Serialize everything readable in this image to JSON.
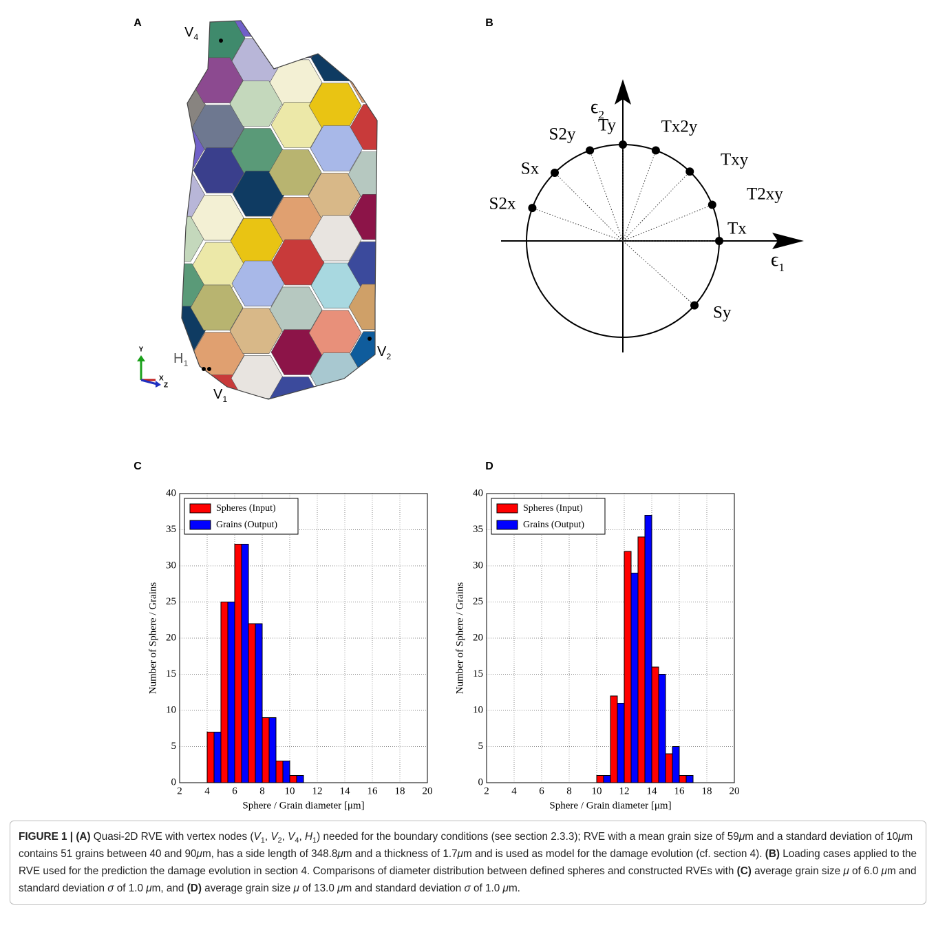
{
  "panels": [
    "A",
    "B",
    "C",
    "D"
  ],
  "panel_a": {
    "vertex_labels": [
      {
        "main": "V",
        "sub": "4"
      },
      {
        "main": "H",
        "sub": "1"
      },
      {
        "main": "V",
        "sub": "1"
      },
      {
        "main": "V",
        "sub": "2"
      }
    ],
    "axis_labels": [
      "Y",
      "X",
      "Z"
    ]
  },
  "panel_b": {
    "axis_labels": [
      {
        "main": "ϵ",
        "sub": "1"
      },
      {
        "main": "ϵ",
        "sub": "2"
      }
    ],
    "points": [
      "Tx",
      "T2xy",
      "Txy",
      "Tx2y",
      "Ty",
      "S2y",
      "Sx",
      "S2x",
      "Sy"
    ]
  },
  "chart_data": [
    {
      "type": "histogram",
      "bins": [
        4,
        5,
        6,
        7,
        8,
        9,
        10,
        11
      ],
      "series": [
        {
          "name": "Spheres (Input)",
          "color": "#ff0000",
          "values": [
            7,
            25,
            33,
            22,
            9,
            3,
            1
          ]
        },
        {
          "name": "Grains (Output)",
          "color": "#0000ff",
          "values": [
            7,
            25,
            33,
            22,
            9,
            3,
            1
          ]
        }
      ],
      "xlabel": "Sphere / Grain diameter [μm]",
      "ylabel": "Number of Sphere / Grains",
      "xlim": [
        2,
        20
      ],
      "ylim": [
        0,
        40
      ],
      "xticks": [
        2,
        4,
        6,
        8,
        10,
        12,
        14,
        16,
        18,
        20
      ],
      "yticks": [
        0,
        5,
        10,
        15,
        20,
        25,
        30,
        35,
        40
      ],
      "grid": true,
      "legend": "upper left"
    },
    {
      "type": "histogram",
      "bins": [
        10,
        11,
        12,
        13,
        14,
        15,
        16,
        17
      ],
      "series": [
        {
          "name": "Spheres (Input)",
          "color": "#ff0000",
          "values": [
            1,
            12,
            32,
            34,
            16,
            4,
            1
          ]
        },
        {
          "name": "Grains (Output)",
          "color": "#0000ff",
          "values": [
            1,
            11,
            29,
            37,
            15,
            5,
            1
          ]
        }
      ],
      "xlabel": "Sphere / Grain diameter [μm]",
      "ylabel": "Number of Sphere / Grains",
      "xlim": [
        2,
        20
      ],
      "ylim": [
        0,
        40
      ],
      "xticks": [
        2,
        4,
        6,
        8,
        10,
        12,
        14,
        16,
        18,
        20
      ],
      "yticks": [
        0,
        5,
        10,
        15,
        20,
        25,
        30,
        35,
        40
      ],
      "grid": true,
      "legend": "upper left"
    }
  ],
  "caption": [
    {
      "text": "FIGURE 1 | (A)",
      "style": "bold"
    },
    {
      "text": " Quasi-2D RVE with vertex nodes ("
    },
    {
      "text": "V",
      "style": "italic"
    },
    {
      "text": "1",
      "style": "sub"
    },
    {
      "text": ", "
    },
    {
      "text": "V",
      "style": "italic"
    },
    {
      "text": "2",
      "style": "sub"
    },
    {
      "text": ", "
    },
    {
      "text": "V",
      "style": "italic"
    },
    {
      "text": "4",
      "style": "sub"
    },
    {
      "text": ", "
    },
    {
      "text": "H",
      "style": "italic"
    },
    {
      "text": "1",
      "style": "sub"
    },
    {
      "text": ") needed for the boundary conditions (see section 2.3.3); RVE with a mean grain size of 59"
    },
    {
      "text": "μ",
      "style": "italic"
    },
    {
      "text": "m and a standard deviation of 10"
    },
    {
      "text": "μ",
      "style": "italic"
    },
    {
      "text": "m contains 51 grains between 40 and 90"
    },
    {
      "text": "μ",
      "style": "italic"
    },
    {
      "text": "m, has a side length of 348.8"
    },
    {
      "text": "μ",
      "style": "italic"
    },
    {
      "text": "m and a thickness of 1.7"
    },
    {
      "text": "μ",
      "style": "italic"
    },
    {
      "text": "m and is used as model for the damage evolution (cf. section 4). "
    },
    {
      "text": "(B)",
      "style": "bold"
    },
    {
      "text": " Loading cases applied to the RVE used for the prediction the damage evolution in section 4. Comparisons of diameter distribution between defined spheres and constructed RVEs with "
    },
    {
      "text": "(C)",
      "style": "bold"
    },
    {
      "text": " average grain size "
    },
    {
      "text": "μ",
      "style": "italic"
    },
    {
      "text": " of 6.0 "
    },
    {
      "text": "μ",
      "style": "italic"
    },
    {
      "text": "m and standard deviation "
    },
    {
      "text": "σ",
      "style": "italic"
    },
    {
      "text": " of 1.0 "
    },
    {
      "text": "μ",
      "style": "italic"
    },
    {
      "text": "m, and "
    },
    {
      "text": "(D)",
      "style": "bold"
    },
    {
      "text": " average grain size "
    },
    {
      "text": "μ",
      "style": "italic"
    },
    {
      "text": " of 13.0 "
    },
    {
      "text": "μ",
      "style": "italic"
    },
    {
      "text": "m and standard deviation "
    },
    {
      "text": "σ",
      "style": "italic"
    },
    {
      "text": " of 1.0 "
    },
    {
      "text": "μ",
      "style": "italic"
    },
    {
      "text": "m."
    }
  ]
}
